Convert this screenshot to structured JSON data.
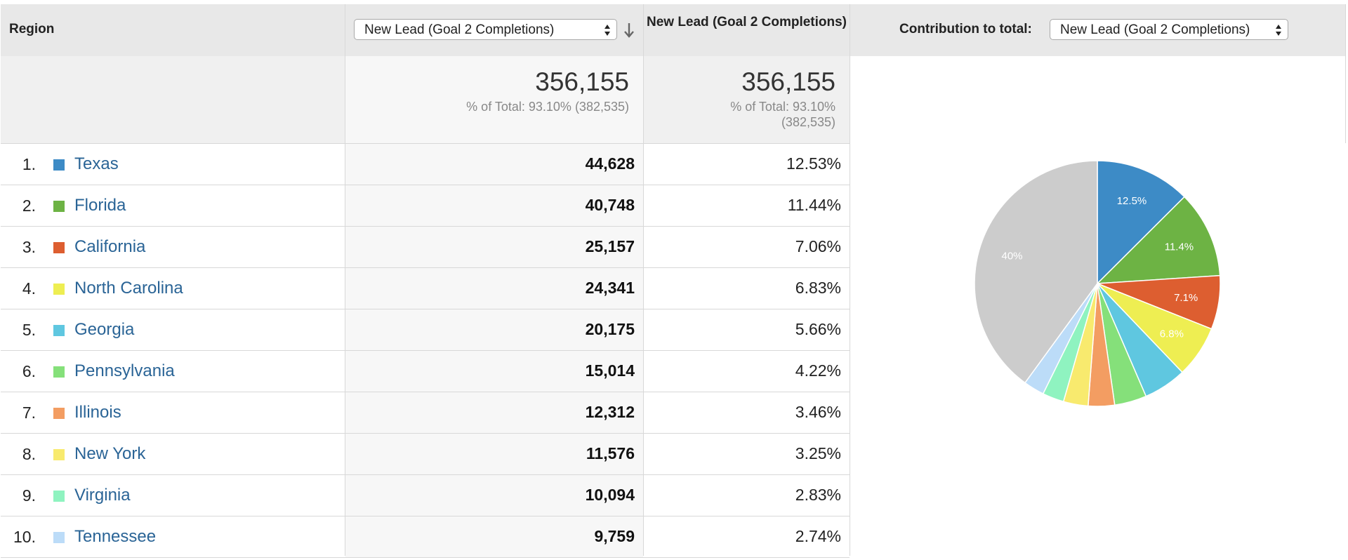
{
  "header": {
    "region_label": "Region",
    "metric_select_value": "New Lead (Goal 2 Completions)",
    "pct_column_label": "New Lead (Goal 2 Completions)",
    "contribution_label": "Contribution to total:",
    "contribution_select_value": "New Lead (Goal 2 Completions)"
  },
  "totals": {
    "metric_total": "356,155",
    "metric_sub": "% of Total: 93.10% (382,535)",
    "pct_total": "356,155",
    "pct_sub_line1": "% of Total: 93.10%",
    "pct_sub_line2": "(382,535)"
  },
  "rows": [
    {
      "rank": "1.",
      "name": "Texas",
      "value": "44,628",
      "pct": "12.53%",
      "color": "#3d8bc6"
    },
    {
      "rank": "2.",
      "name": "Florida",
      "value": "40,748",
      "pct": "11.44%",
      "color": "#6db344"
    },
    {
      "rank": "3.",
      "name": "California",
      "value": "25,157",
      "pct": "7.06%",
      "color": "#dd5e30"
    },
    {
      "rank": "4.",
      "name": "North Carolina",
      "value": "24,341",
      "pct": "6.83%",
      "color": "#eeee52"
    },
    {
      "rank": "5.",
      "name": "Georgia",
      "value": "20,175",
      "pct": "5.66%",
      "color": "#5fc7e0"
    },
    {
      "rank": "6.",
      "name": "Pennsylvania",
      "value": "15,014",
      "pct": "4.22%",
      "color": "#85e07a"
    },
    {
      "rank": "7.",
      "name": "Illinois",
      "value": "12,312",
      "pct": "3.46%",
      "color": "#f39d62"
    },
    {
      "rank": "8.",
      "name": "New York",
      "value": "11,576",
      "pct": "3.25%",
      "color": "#f8ea6e"
    },
    {
      "rank": "9.",
      "name": "Virginia",
      "value": "10,094",
      "pct": "2.83%",
      "color": "#8ff3c0"
    },
    {
      "rank": "10.",
      "name": "Tennessee",
      "value": "9,759",
      "pct": "2.74%",
      "color": "#bcdcf8"
    }
  ],
  "chart_data": {
    "type": "pie",
    "categories": [
      "Texas",
      "Florida",
      "California",
      "North Carolina",
      "Georgia",
      "Pennsylvania",
      "Illinois",
      "New York",
      "Virginia",
      "Tennessee",
      "(other)"
    ],
    "values": [
      12.53,
      11.44,
      7.06,
      6.83,
      5.66,
      4.22,
      3.46,
      3.25,
      2.83,
      2.74,
      39.98
    ],
    "slice_labels": [
      "12.5%",
      "11.4%",
      "7.1%",
      "6.8%",
      "",
      "",
      "",
      "",
      "",
      "",
      "40%"
    ],
    "colors": [
      "#3d8bc6",
      "#6db344",
      "#dd5e30",
      "#eeee52",
      "#5fc7e0",
      "#85e07a",
      "#f39d62",
      "#f8ea6e",
      "#8ff3c0",
      "#bcdcf8",
      "#cccccc"
    ],
    "start_angle": "12 o'clock, clockwise"
  }
}
